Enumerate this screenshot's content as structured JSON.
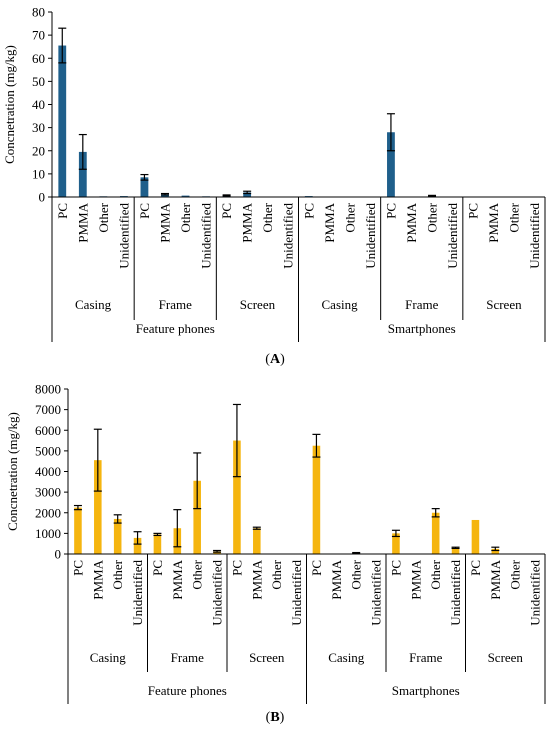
{
  "figure_captions": {
    "a": "A",
    "b": "B"
  },
  "chart_data": [
    {
      "id": "A",
      "type": "bar",
      "ylabel": "Concnetration (mg/kg)",
      "ylim": [
        0,
        80
      ],
      "yticks": [
        0,
        10,
        20,
        30,
        40,
        50,
        60,
        70,
        80
      ],
      "grid": false,
      "bar_color": "#1f5f8b",
      "groups": [
        "Feature phones",
        "Smartphones"
      ],
      "subgroups": [
        "Casing",
        "Frame",
        "Screen"
      ],
      "categories": [
        "PC",
        "PMMA",
        "Other",
        "Unidentified"
      ],
      "values": [
        [
          [
            65.5,
            19.5,
            0.3,
            0.4
          ],
          [
            8.5,
            1.2,
            0.6,
            0.3
          ],
          [
            0.7,
            2.0,
            0,
            0
          ]
        ],
        [
          [
            0.4,
            0,
            0,
            0
          ],
          [
            28,
            0,
            0.5,
            0
          ],
          [
            0,
            0.2,
            0,
            0
          ]
        ]
      ],
      "errors": [
        [
          [
            7.5,
            7.5,
            0,
            0
          ],
          [
            1.2,
            0.3,
            0,
            0
          ],
          [
            0.2,
            0.5,
            0,
            0
          ]
        ],
        [
          [
            0,
            0,
            0,
            0
          ],
          [
            8,
            0,
            0.2,
            0
          ],
          [
            0,
            0,
            0,
            0
          ]
        ]
      ]
    },
    {
      "id": "B",
      "type": "bar",
      "ylabel": "Concnetration (mg/kg)",
      "ylim": [
        0,
        8000
      ],
      "yticks": [
        0,
        1000,
        2000,
        3000,
        4000,
        5000,
        6000,
        7000,
        8000
      ],
      "grid": false,
      "bar_color": "#f5b50f",
      "groups": [
        "Feature phones",
        "Smartphones"
      ],
      "subgroups": [
        "Casing",
        "Frame",
        "Screen"
      ],
      "categories": [
        "PC",
        "PMMA",
        "Other",
        "Unidentified"
      ],
      "values": [
        [
          [
            2250,
            4550,
            1700,
            780
          ],
          [
            950,
            1250,
            3550,
            130
          ],
          [
            5500,
            1250,
            0,
            0
          ]
        ],
        [
          [
            5250,
            0,
            50,
            0
          ],
          [
            1000,
            0,
            2000,
            300
          ],
          [
            1650,
            250,
            0,
            0
          ]
        ]
      ],
      "errors": [
        [
          [
            100,
            1500,
            200,
            300
          ],
          [
            50,
            900,
            1350,
            40
          ],
          [
            1750,
            50,
            0,
            0
          ]
        ],
        [
          [
            550,
            0,
            20,
            0
          ],
          [
            150,
            0,
            200,
            30
          ],
          [
            0,
            80,
            0,
            0
          ]
        ]
      ]
    }
  ]
}
